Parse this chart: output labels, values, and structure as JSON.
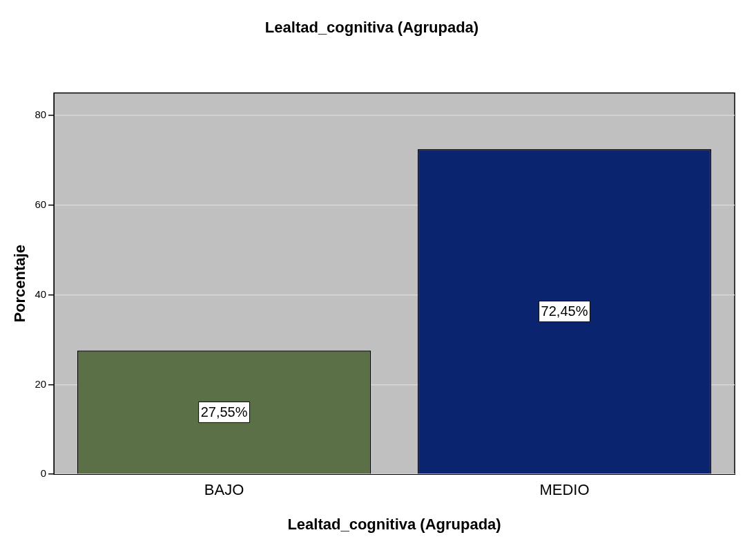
{
  "chart_data": {
    "type": "bar",
    "title": "Lealtad_cognitiva (Agrupada)",
    "xlabel": "Lealtad_cognitiva (Agrupada)",
    "ylabel": "Porcentaje",
    "categories": [
      "BAJO",
      "MEDIO"
    ],
    "values": [
      27.55,
      72.45
    ],
    "colors": [
      "#5c7047",
      "#0a2470"
    ],
    "value_labels": [
      "27,55%",
      "72,45%"
    ],
    "ylim": [
      0,
      85
    ],
    "yticks": [
      0,
      20,
      40,
      60,
      80
    ],
    "grid": "y",
    "legend": false
  }
}
